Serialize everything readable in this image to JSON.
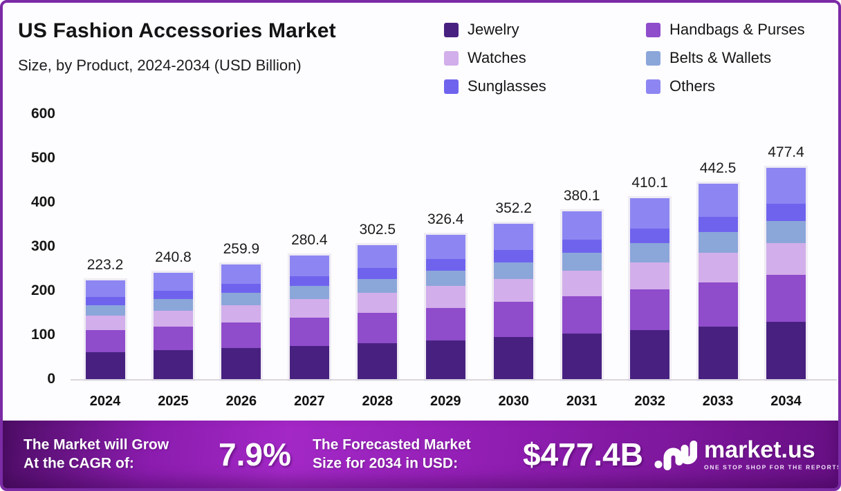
{
  "header": {
    "title": "US Fashion Accessories Market",
    "subtitle": "Size, by Product, 2024-2034 (USD Billion)"
  },
  "legend": {
    "items": [
      {
        "label": "Jewelry",
        "color": "#482180"
      },
      {
        "label": "Handbags & Purses",
        "color": "#8f4ccb"
      },
      {
        "label": "Watches",
        "color": "#d2aeea"
      },
      {
        "label": "Belts & Wallets",
        "color": "#8ba6d9"
      },
      {
        "label": "Sunglasses",
        "color": "#6f63ee"
      },
      {
        "label": "Others",
        "color": "#8d86f2"
      }
    ]
  },
  "chart_data": {
    "type": "bar",
    "stacked": true,
    "title": "US Fashion Accessories Market",
    "subtitle": "Size, by Product, 2024-2034 (USD Billion)",
    "xlabel": "",
    "ylabel": "USD Billion",
    "ylim": [
      0,
      600
    ],
    "yticks": [
      0,
      100,
      200,
      300,
      400,
      500,
      600
    ],
    "grid": false,
    "legend_position": "top-right",
    "categories": [
      "2024",
      "2025",
      "2026",
      "2027",
      "2028",
      "2029",
      "2030",
      "2031",
      "2032",
      "2033",
      "2034"
    ],
    "totals": [
      223.2,
      240.8,
      259.9,
      280.4,
      302.5,
      326.4,
      352.2,
      380.1,
      410.1,
      442.5,
      477.4
    ],
    "series": [
      {
        "name": "Jewelry",
        "color": "#482180",
        "values": [
          60.3,
          65.0,
          70.2,
          75.7,
          81.7,
          88.1,
          95.1,
          102.6,
          110.7,
          119.5,
          128.9
        ]
      },
      {
        "name": "Handbags & Purses",
        "color": "#8f4ccb",
        "values": [
          50.2,
          54.2,
          58.5,
          63.1,
          68.1,
          73.4,
          79.2,
          85.5,
          92.3,
          99.6,
          107.4
        ]
      },
      {
        "name": "Watches",
        "color": "#d2aeea",
        "values": [
          33.5,
          36.1,
          39.0,
          42.1,
          45.4,
          49.0,
          52.8,
          57.0,
          61.5,
          66.4,
          71.6
        ]
      },
      {
        "name": "Belts & Wallets",
        "color": "#8ba6d9",
        "values": [
          23.7,
          25.5,
          27.5,
          29.7,
          32.1,
          34.6,
          37.3,
          40.3,
          43.5,
          46.9,
          50.6
        ]
      },
      {
        "name": "Sunglasses",
        "color": "#6f63ee",
        "values": [
          17.9,
          19.3,
          20.8,
          22.4,
          24.2,
          26.1,
          28.2,
          30.4,
          32.8,
          35.4,
          38.2
        ]
      },
      {
        "name": "Others",
        "color": "#8d86f2",
        "values": [
          37.7,
          40.7,
          43.9,
          47.4,
          51.1,
          55.2,
          59.5,
          64.2,
          69.3,
          74.8,
          80.7
        ]
      }
    ]
  },
  "banner": {
    "cagr_label": [
      "The Market will Grow",
      "At the CAGR of:"
    ],
    "cagr_value": "7.9%",
    "forecast_label": [
      "The Forecasted Market",
      "Size for 2034 in USD:"
    ],
    "forecast_value": "$477.4B",
    "brand": {
      "name": "market.us",
      "tagline": "ONE STOP SHOP FOR THE REPORTS"
    }
  },
  "colors": {
    "page_border": "#7b2ba5",
    "baseline": "#d9d7dc",
    "banner_gradient": [
      "#4e0d66",
      "#a328c6",
      "#660f83"
    ]
  }
}
